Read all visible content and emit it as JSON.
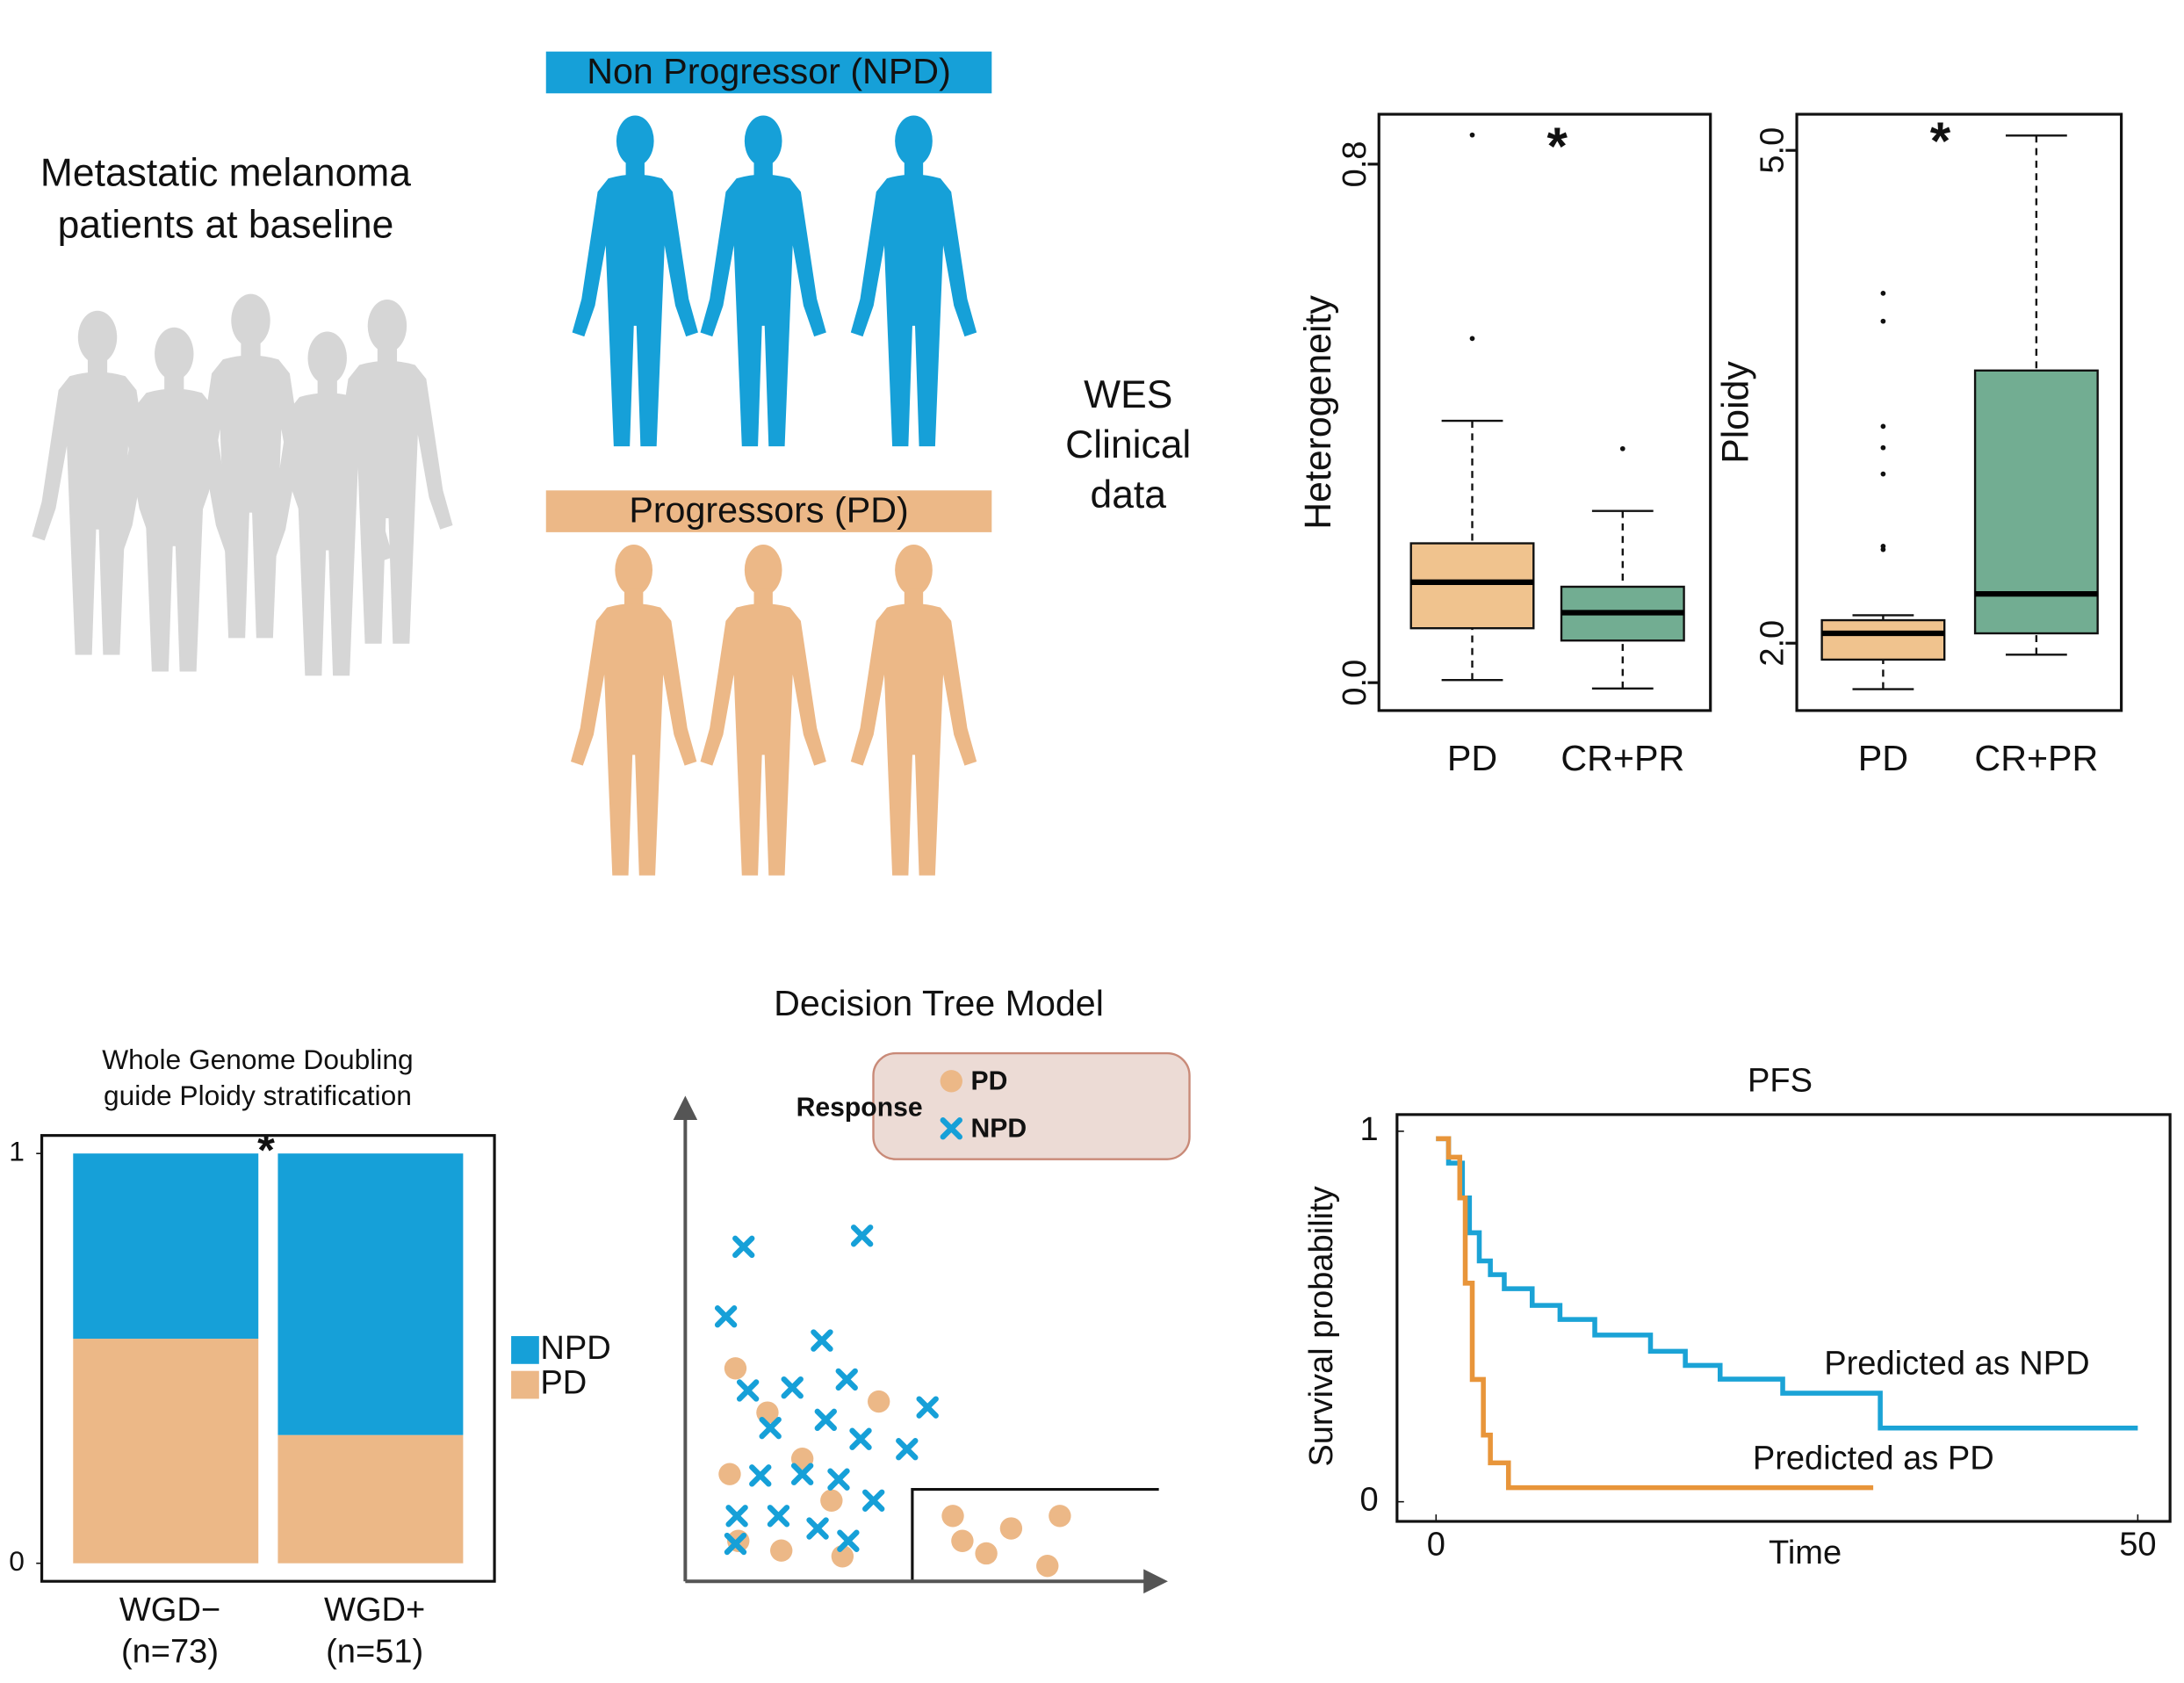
{
  "cohort": {
    "lines": [
      "Metastatic melanoma",
      "patients at baseline"
    ]
  },
  "groups": [
    {
      "label": "Non Progressor (NPD)",
      "color": "#16a0d8"
    },
    {
      "label": "Progressors (PD)",
      "color": "#ecb887"
    }
  ],
  "data_types": [
    "WES",
    "Clinical",
    "data"
  ],
  "chart_data": [
    {
      "type": "boxplot",
      "ylabel": "Heterogeneity",
      "categories": [
        "PD",
        "CR+PR"
      ],
      "colors": [
        "#f0c38e",
        "#72ad92"
      ],
      "stats": [
        {
          "min": 0.004,
          "q1": 0.084,
          "median": 0.155,
          "q3": 0.215,
          "max": 0.404,
          "outliers": [
            0.531,
            0.845
          ]
        },
        {
          "min": -0.009,
          "q1": 0.065,
          "median": 0.108,
          "q3": 0.148,
          "max": 0.265,
          "outliers": [
            0.361
          ]
        }
      ],
      "ylim": [
        -0.043,
        0.877
      ],
      "yticks": [
        {
          "value": 0,
          "label": "0.0"
        },
        {
          "value": 0.8,
          "label": "0.8"
        }
      ],
      "annotation": "*"
    },
    {
      "type": "boxplot",
      "ylabel": "Ploidy",
      "categories": [
        "PD",
        "CR+PR"
      ],
      "colors": [
        "#f0c38e",
        "#72ad92"
      ],
      "stats": [
        {
          "min": 1.72,
          "q1": 1.9,
          "median": 2.06,
          "q3": 2.14,
          "max": 2.17,
          "outliers": [
            2.57,
            2.59,
            3.03,
            3.19,
            3.32,
            3.96,
            4.13
          ]
        },
        {
          "min": 1.93,
          "q1": 2.06,
          "median": 2.3,
          "q3": 3.66,
          "max": 5.09,
          "outliers": []
        }
      ],
      "ylim": [
        1.59,
        5.22
      ],
      "yticks": [
        {
          "value": 2,
          "label": "2.0"
        },
        {
          "value": 5,
          "label": "5.0"
        }
      ],
      "annotation": "*"
    },
    {
      "type": "stacked_bar",
      "title": [
        "Whole Genome Doubling",
        "guide Ploidy stratification"
      ],
      "categories": [
        "WGD−",
        "WGD+"
      ],
      "category_notes": [
        "(n=73)",
        "(n=51)"
      ],
      "series": [
        {
          "name": "PD",
          "color": "#ecb887",
          "values": [
            0.548,
            0.313
          ]
        },
        {
          "name": "NPD",
          "color": "#16a0d8",
          "values": [
            0.452,
            0.687
          ]
        }
      ],
      "ylim": [
        -0.044,
        1.044
      ],
      "yticks": [
        0,
        1
      ],
      "annotation": "*"
    },
    {
      "type": "scatter",
      "title": "Decision Tree Model",
      "legend_title": "Response",
      "xlim": [
        0,
        100
      ],
      "ylim": [
        0,
        100
      ],
      "series": [
        {
          "name": "PD",
          "marker": "circle",
          "color": "#ecb887",
          "x": [
            10.5,
            40.5,
            17.2,
            24.5,
            9.3,
            30.6,
            11.1,
            20.1,
            32.9,
            56.0,
            68.2,
            78.4,
            58.0,
            63.0,
            75.8
          ],
          "y": [
            44.3,
            37.4,
            35.1,
            25.5,
            22.3,
            16.8,
            8.4,
            6.4,
            5.2,
            13.6,
            11.0,
            13.6,
            8.4,
            5.8,
            3.2
          ]
        },
        {
          "name": "NPD",
          "marker": "cross",
          "color": "#16a0d8",
          "x": [
            12.2,
            37.0,
            8.5,
            28.6,
            13.1,
            22.4,
            33.8,
            50.7,
            29.4,
            36.7,
            46.4,
            17.8,
            15.7,
            24.5,
            32.1,
            39.4,
            10.8,
            19.5,
            34.1,
            10.5,
            27.7
          ],
          "y": [
            69.6,
            71.9,
            55.1,
            50.1,
            39.7,
            40.3,
            42.0,
            36.2,
            33.6,
            29.6,
            27.5,
            31.9,
            22.0,
            22.3,
            21.2,
            16.8,
            13.6,
            13.6,
            8.4,
            7.8,
            11.0
          ]
        }
      ]
    },
    {
      "type": "line",
      "title": "PFS",
      "xlabel": "Time",
      "ylabel": "Survival probability",
      "xlim": [
        -2.78,
        52.3
      ],
      "ylim": [
        -0.053,
        1.045
      ],
      "xticks": [
        0,
        50
      ],
      "yticks": [
        0,
        1
      ],
      "series": [
        {
          "name": "Predicted as NPD",
          "color": "#1ba3d6",
          "x": [
            0,
            0.89,
            0.89,
            1.88,
            1.88,
            2.38,
            2.38,
            3.08,
            3.08,
            3.87,
            3.87,
            4.86,
            4.86,
            6.85,
            6.85,
            8.83,
            8.83,
            11.31,
            11.31,
            15.28,
            15.28,
            17.76,
            17.76,
            20.24,
            20.24,
            24.7,
            24.7,
            31.65,
            31.65,
            50
          ],
          "values": [
            0.98,
            0.98,
            0.914,
            0.914,
            0.82,
            0.82,
            0.726,
            0.726,
            0.65,
            0.65,
            0.613,
            0.613,
            0.575,
            0.575,
            0.53,
            0.53,
            0.492,
            0.492,
            0.45,
            0.45,
            0.406,
            0.406,
            0.368,
            0.368,
            0.331,
            0.331,
            0.293,
            0.293,
            0.199,
            0.199
          ]
        },
        {
          "name": "Predicted as PD",
          "color": "#e8953a",
          "x": [
            0,
            0.89,
            0.89,
            1.69,
            1.69,
            2.08,
            2.08,
            2.58,
            2.58,
            3.37,
            3.37,
            3.87,
            3.87,
            5.16,
            5.16,
            31.15
          ],
          "values": [
            0.98,
            0.98,
            0.93,
            0.93,
            0.82,
            0.82,
            0.59,
            0.59,
            0.33,
            0.33,
            0.18,
            0.18,
            0.105,
            0.105,
            0.038,
            0.038
          ]
        }
      ]
    }
  ]
}
